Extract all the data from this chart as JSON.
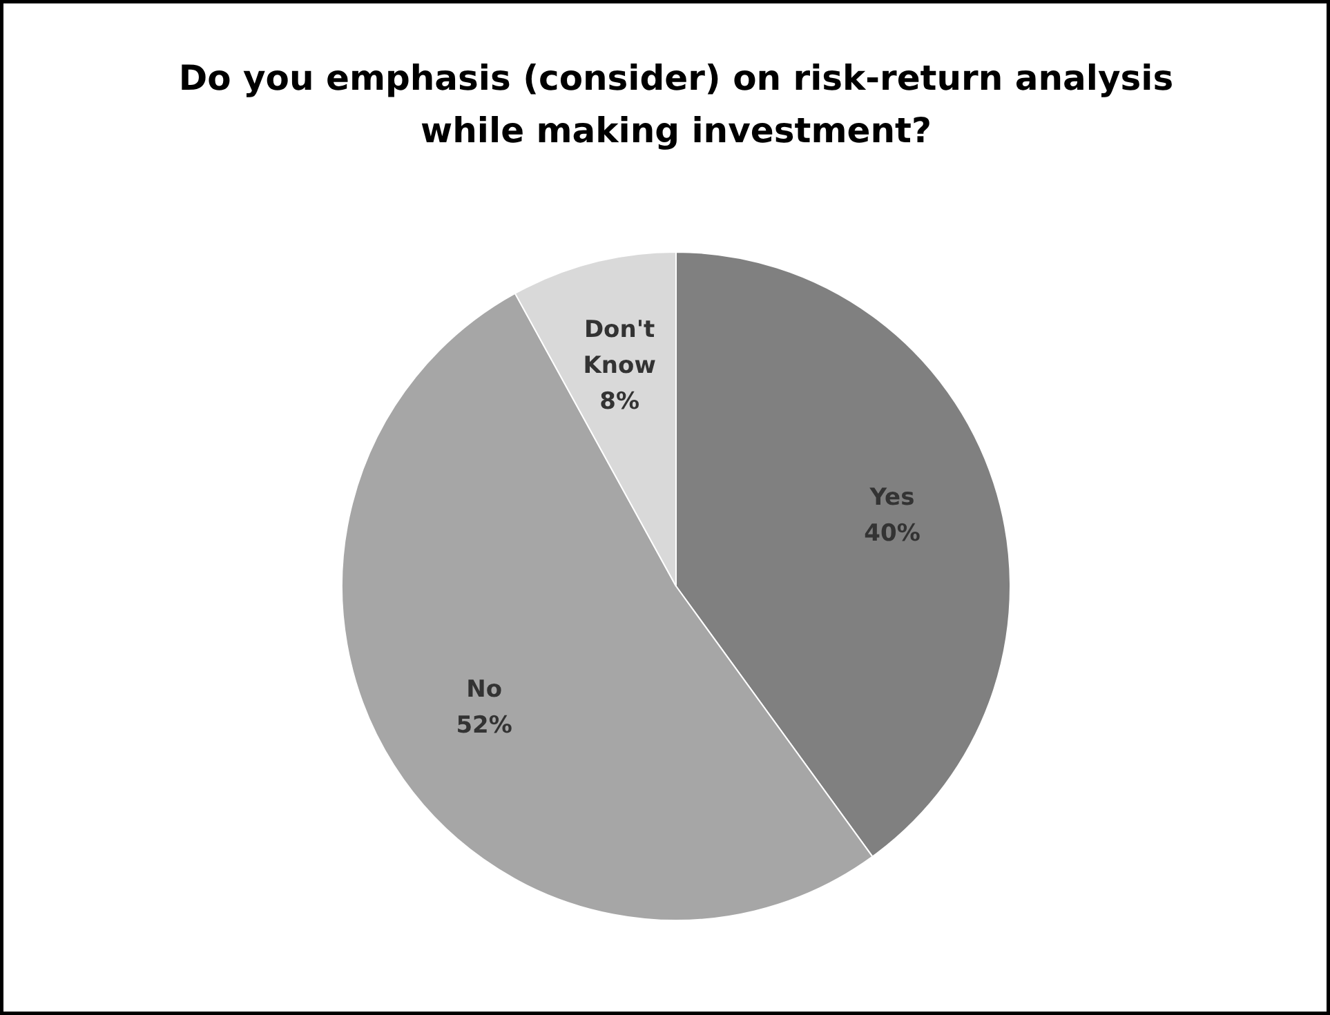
{
  "chart_data": {
    "type": "pie",
    "title": "Do you emphasis (consider) on risk-return analysis while making investment?",
    "categories": [
      "Yes",
      "No",
      "Don't Know"
    ],
    "values": [
      40,
      52,
      8
    ],
    "value_labels": [
      "40%",
      "52%",
      "8%"
    ],
    "colors": [
      "#808080",
      "#a6a6a6",
      "#d9d9d9"
    ]
  }
}
